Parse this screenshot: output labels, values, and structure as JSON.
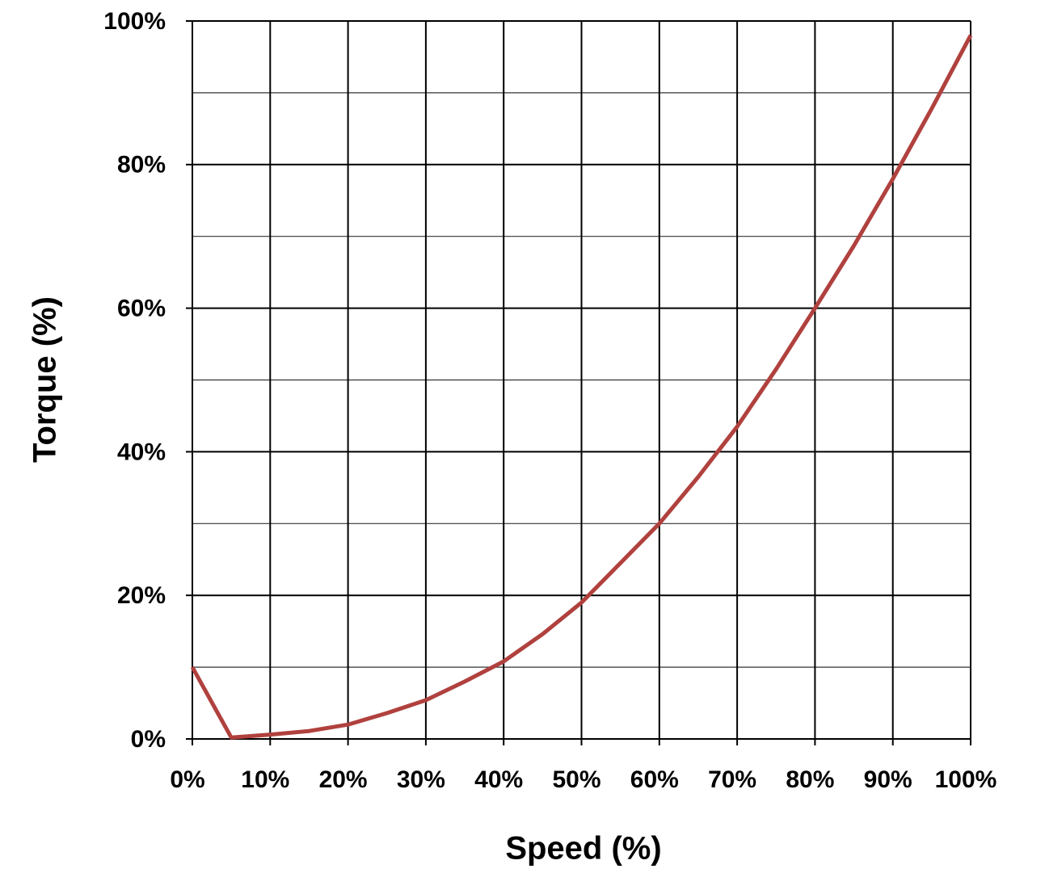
{
  "chart_data": {
    "type": "line",
    "x_label": "Speed (%)",
    "y_label": "Torque (%)",
    "x": [
      0,
      5,
      10,
      15,
      20,
      25,
      30,
      35,
      40,
      45,
      50,
      55,
      60,
      65,
      70,
      75,
      80,
      85,
      90,
      95,
      100
    ],
    "series": [
      {
        "color": "#b0413e",
        "values": [
          10,
          0.2,
          0.6,
          1.1,
          2,
          3.6,
          5.4,
          8,
          10.8,
          14.6,
          19,
          24.5,
          30,
          36.5,
          43.5,
          51.5,
          60,
          68.7,
          78,
          87.8,
          98
        ]
      }
    ],
    "xlim": [
      0,
      100
    ],
    "ylim": [
      0,
      100
    ],
    "xticks": [
      {
        "value": 0,
        "label": "0%"
      },
      {
        "value": 10,
        "label": "10%"
      },
      {
        "value": 20,
        "label": "20%"
      },
      {
        "value": 30,
        "label": "30%"
      },
      {
        "value": 40,
        "label": "40%"
      },
      {
        "value": 50,
        "label": "50%"
      },
      {
        "value": 60,
        "label": "60%"
      },
      {
        "value": 70,
        "label": "70%"
      },
      {
        "value": 80,
        "label": "80%"
      },
      {
        "value": 90,
        "label": "90%"
      },
      {
        "value": 100,
        "label": "100%"
      }
    ],
    "yticks": [
      {
        "value": 0,
        "label": "0%"
      },
      {
        "value": 20,
        "label": "20%"
      },
      {
        "value": 40,
        "label": "40%"
      },
      {
        "value": 60,
        "label": "60%"
      },
      {
        "value": 80,
        "label": "80%"
      },
      {
        "value": 100,
        "label": "100%"
      }
    ],
    "yminorticks": [
      10,
      30,
      50,
      70,
      90
    ],
    "grid": true
  }
}
